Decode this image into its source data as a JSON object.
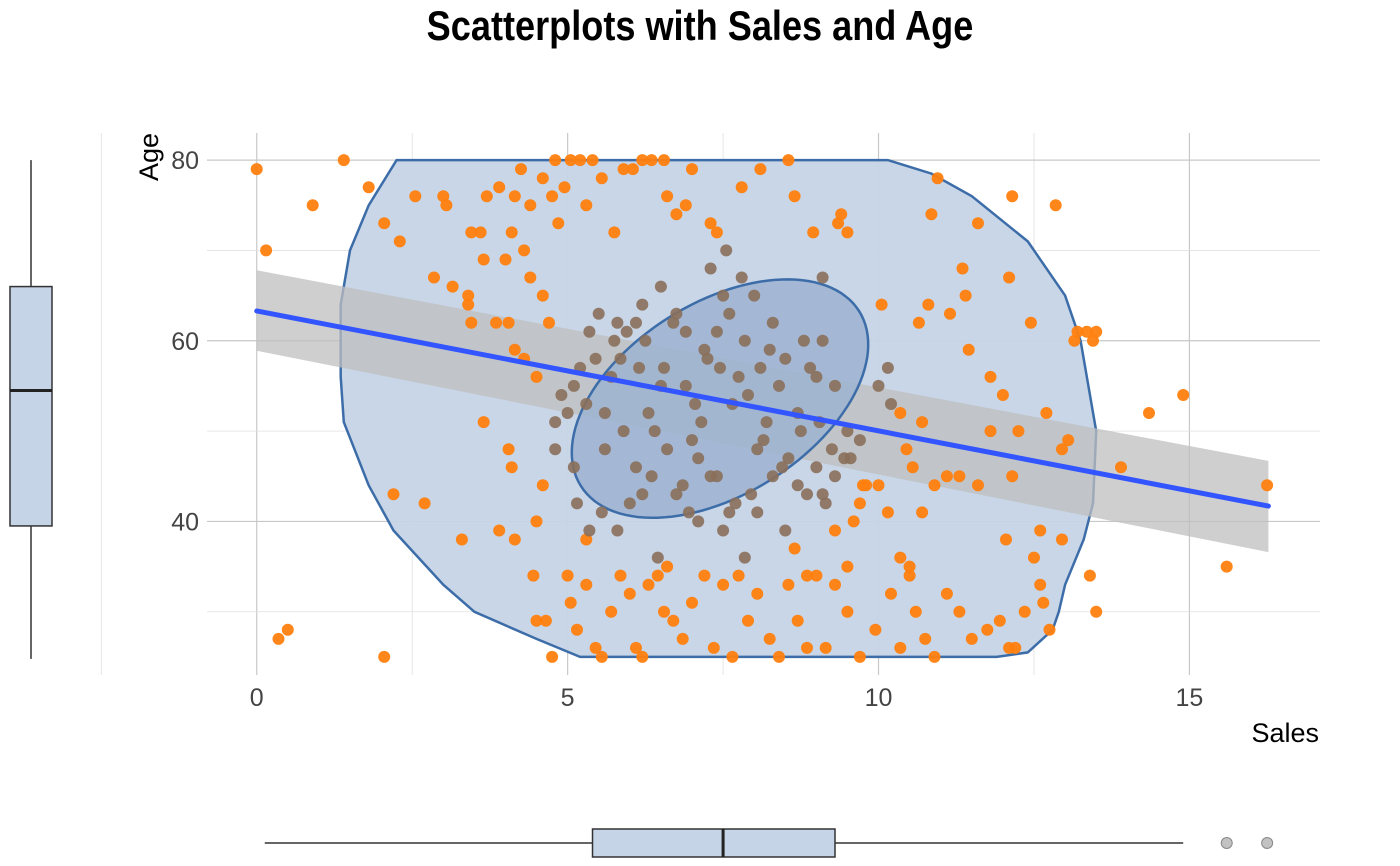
{
  "chart_data": {
    "type": "scatter",
    "title": "Scatterplots with Sales and Age",
    "xlabel": "Sales",
    "ylabel": "Age",
    "xlim": [
      -0.8,
      17.1
    ],
    "ylim": [
      23,
      83
    ],
    "x_ticks": [
      0,
      5,
      10,
      15
    ],
    "y_ticks": [
      40,
      60,
      80
    ],
    "grid": true,
    "colors": {
      "points": "#ff7f0e",
      "inner_points": "#a3814f",
      "ellipse_fill": "#9db3d1",
      "ellipse_stroke": "#3d6da8",
      "hull_fill": "#c5d4e6",
      "regression_line": "#3355ff",
      "confidence_band": "#bfbfbf",
      "boxplot_fill": "#c5d4e6",
      "outlier": "#999999"
    },
    "regression": {
      "x": [
        0,
        16.27
      ],
      "y": [
        63.3,
        41.7
      ],
      "ci_lower": [
        58.9,
        36.6
      ],
      "ci_upper": [
        67.8,
        46.7
      ]
    },
    "hull": [
      [
        2.25,
        80
      ],
      [
        10.15,
        80
      ],
      [
        10.85,
        78.5
      ],
      [
        11.5,
        76
      ],
      [
        12.4,
        71
      ],
      [
        13.0,
        65
      ],
      [
        13.25,
        60
      ],
      [
        13.5,
        50
      ],
      [
        13.45,
        42
      ],
      [
        13.3,
        38
      ],
      [
        13.0,
        33
      ],
      [
        12.9,
        30
      ],
      [
        12.8,
        28
      ],
      [
        12.4,
        25.5
      ],
      [
        11.9,
        25
      ],
      [
        5.2,
        25
      ],
      [
        4.5,
        27
      ],
      [
        3.5,
        30
      ],
      [
        3.0,
        33
      ],
      [
        2.2,
        39
      ],
      [
        1.8,
        44
      ],
      [
        1.4,
        51
      ],
      [
        1.35,
        56
      ],
      [
        1.35,
        64
      ],
      [
        1.5,
        70
      ],
      [
        1.8,
        75
      ],
      [
        2.25,
        80
      ]
    ],
    "ellipse": {
      "center": [
        7.45,
        53.6
      ],
      "rx": 2.95,
      "ry": 18.5,
      "tilt": -0.68
    },
    "points": [
      [
        0,
        79
      ],
      [
        0.15,
        70
      ],
      [
        0.9,
        75
      ],
      [
        1.4,
        80
      ],
      [
        1.8,
        77
      ],
      [
        2.05,
        73
      ],
      [
        2.3,
        71
      ],
      [
        2.55,
        76
      ],
      [
        2.85,
        67
      ],
      [
        3.0,
        76
      ],
      [
        3.05,
        75
      ],
      [
        3.15,
        66
      ],
      [
        3.4,
        64
      ],
      [
        3.45,
        72
      ],
      [
        3.6,
        72
      ],
      [
        3.65,
        69
      ],
      [
        3.7,
        76
      ],
      [
        3.9,
        77
      ],
      [
        4.0,
        69
      ],
      [
        4.1,
        72
      ],
      [
        4.15,
        76
      ],
      [
        4.25,
        79
      ],
      [
        4.3,
        70
      ],
      [
        4.4,
        75
      ],
      [
        4.6,
        78
      ],
      [
        4.75,
        76
      ],
      [
        4.8,
        80
      ],
      [
        4.85,
        73
      ],
      [
        4.95,
        77
      ],
      [
        5.05,
        80
      ],
      [
        5.2,
        80
      ],
      [
        5.3,
        75
      ],
      [
        5.4,
        80
      ],
      [
        5.55,
        78
      ],
      [
        5.75,
        72
      ],
      [
        5.9,
        79
      ],
      [
        6.05,
        79
      ],
      [
        6.2,
        80
      ],
      [
        6.35,
        80
      ],
      [
        6.55,
        80
      ],
      [
        6.6,
        76
      ],
      [
        6.75,
        74
      ],
      [
        6.9,
        75
      ],
      [
        7.0,
        79
      ],
      [
        7.3,
        73
      ],
      [
        7.4,
        72
      ],
      [
        7.55,
        70
      ],
      [
        7.8,
        77
      ],
      [
        8.1,
        79
      ],
      [
        8.55,
        80
      ],
      [
        8.65,
        76
      ],
      [
        8.95,
        72
      ],
      [
        9.1,
        67
      ],
      [
        9.35,
        73
      ],
      [
        9.4,
        74
      ],
      [
        9.5,
        72
      ],
      [
        10.05,
        64
      ],
      [
        10.15,
        57
      ],
      [
        10.65,
        62
      ],
      [
        10.8,
        64
      ],
      [
        10.85,
        74
      ],
      [
        10.95,
        78
      ],
      [
        11.15,
        63
      ],
      [
        11.35,
        68
      ],
      [
        11.4,
        65
      ],
      [
        11.45,
        59
      ],
      [
        11.6,
        73
      ],
      [
        11.8,
        56
      ],
      [
        12.0,
        54
      ],
      [
        12.1,
        67
      ],
      [
        12.15,
        76
      ],
      [
        12.25,
        50
      ],
      [
        12.45,
        62
      ],
      [
        12.7,
        52
      ],
      [
        12.95,
        48
      ],
      [
        12.85,
        75
      ],
      [
        13.05,
        49
      ],
      [
        13.15,
        60
      ],
      [
        13.2,
        61
      ],
      [
        13.35,
        61
      ],
      [
        13.45,
        60
      ],
      [
        13.5,
        61
      ],
      [
        3.4,
        65
      ],
      [
        3.45,
        62
      ],
      [
        3.65,
        51
      ],
      [
        3.85,
        62
      ],
      [
        4.05,
        62
      ],
      [
        4.15,
        59
      ],
      [
        4.3,
        58
      ],
      [
        4.4,
        67
      ],
      [
        4.5,
        56
      ],
      [
        4.6,
        65
      ],
      [
        4.7,
        62
      ],
      [
        4.8,
        51
      ],
      [
        4.9,
        54
      ],
      [
        5.0,
        52
      ],
      [
        5.1,
        55
      ],
      [
        5.2,
        57
      ],
      [
        5.35,
        61
      ],
      [
        5.45,
        58
      ],
      [
        5.6,
        52
      ],
      [
        5.75,
        60
      ],
      [
        5.85,
        58
      ],
      [
        6.1,
        62
      ],
      [
        6.25,
        60
      ],
      [
        6.4,
        50
      ],
      [
        6.55,
        57
      ],
      [
        6.7,
        62
      ],
      [
        6.9,
        55
      ],
      [
        7.05,
        53
      ],
      [
        7.15,
        51
      ],
      [
        7.25,
        58
      ],
      [
        7.4,
        61
      ],
      [
        7.6,
        63
      ],
      [
        7.75,
        56
      ],
      [
        7.9,
        54
      ],
      [
        8.05,
        48
      ],
      [
        8.2,
        51
      ],
      [
        8.4,
        55
      ],
      [
        8.55,
        47
      ],
      [
        8.7,
        44
      ],
      [
        8.85,
        43
      ],
      [
        9.0,
        46
      ],
      [
        9.15,
        42
      ],
      [
        9.3,
        45
      ],
      [
        9.45,
        47
      ],
      [
        9.6,
        40
      ],
      [
        9.8,
        44
      ],
      [
        10.0,
        55
      ],
      [
        10.2,
        53
      ],
      [
        10.35,
        52
      ],
      [
        10.45,
        48
      ],
      [
        10.55,
        46
      ],
      [
        10.7,
        51
      ],
      [
        2.2,
        43
      ],
      [
        2.7,
        42
      ],
      [
        3.3,
        38
      ],
      [
        3.9,
        39
      ],
      [
        4.15,
        38
      ],
      [
        4.05,
        48
      ],
      [
        4.1,
        46
      ],
      [
        4.5,
        40
      ],
      [
        4.6,
        44
      ],
      [
        4.8,
        48
      ],
      [
        5.1,
        46
      ],
      [
        5.15,
        42
      ],
      [
        5.3,
        38
      ],
      [
        5.35,
        39
      ],
      [
        5.55,
        41
      ],
      [
        5.8,
        39
      ],
      [
        6.0,
        42
      ],
      [
        6.2,
        43
      ],
      [
        6.45,
        36
      ],
      [
        6.6,
        35
      ],
      [
        6.75,
        43
      ],
      [
        6.95,
        41
      ],
      [
        7.1,
        40
      ],
      [
        7.3,
        45
      ],
      [
        7.5,
        39
      ],
      [
        7.7,
        42
      ],
      [
        7.85,
        36
      ],
      [
        8.05,
        41
      ],
      [
        8.3,
        45
      ],
      [
        8.5,
        39
      ],
      [
        8.65,
        37
      ],
      [
        8.85,
        34
      ],
      [
        9.1,
        43
      ],
      [
        9.3,
        39
      ],
      [
        9.5,
        35
      ],
      [
        9.7,
        42
      ],
      [
        10.0,
        44
      ],
      [
        10.15,
        41
      ],
      [
        10.35,
        36
      ],
      [
        10.5,
        35
      ],
      [
        10.7,
        41
      ],
      [
        10.9,
        44
      ],
      [
        11.1,
        45
      ],
      [
        11.3,
        45
      ],
      [
        11.6,
        44
      ],
      [
        11.8,
        50
      ],
      [
        12.05,
        38
      ],
      [
        12.15,
        45
      ],
      [
        12.5,
        36
      ],
      [
        12.6,
        39
      ],
      [
        12.95,
        38
      ],
      [
        13.4,
        34
      ],
      [
        13.5,
        30
      ],
      [
        13.9,
        46
      ],
      [
        14.35,
        52
      ],
      [
        14.9,
        54
      ],
      [
        15.6,
        35
      ],
      [
        16.25,
        44
      ],
      [
        0.35,
        27
      ],
      [
        0.5,
        28
      ],
      [
        2.05,
        25
      ],
      [
        4.45,
        34
      ],
      [
        4.5,
        29
      ],
      [
        4.65,
        29
      ],
      [
        4.75,
        25
      ],
      [
        5.0,
        34
      ],
      [
        5.05,
        31
      ],
      [
        5.15,
        28
      ],
      [
        5.3,
        33
      ],
      [
        5.45,
        26
      ],
      [
        5.55,
        25
      ],
      [
        5.7,
        30
      ],
      [
        5.85,
        34
      ],
      [
        6.0,
        32
      ],
      [
        6.1,
        26
      ],
      [
        6.2,
        25
      ],
      [
        6.3,
        33
      ],
      [
        6.45,
        34
      ],
      [
        6.55,
        30
      ],
      [
        6.7,
        29
      ],
      [
        6.85,
        27
      ],
      [
        7.0,
        31
      ],
      [
        7.2,
        34
      ],
      [
        7.35,
        26
      ],
      [
        7.5,
        33
      ],
      [
        7.65,
        25
      ],
      [
        7.75,
        34
      ],
      [
        7.9,
        29
      ],
      [
        8.05,
        32
      ],
      [
        8.25,
        27
      ],
      [
        8.4,
        25
      ],
      [
        8.55,
        33
      ],
      [
        8.7,
        29
      ],
      [
        8.85,
        26
      ],
      [
        9.0,
        34
      ],
      [
        9.15,
        26
      ],
      [
        9.3,
        33
      ],
      [
        9.5,
        30
      ],
      [
        9.7,
        25
      ],
      [
        9.95,
        28
      ],
      [
        10.2,
        32
      ],
      [
        10.35,
        26
      ],
      [
        10.5,
        34
      ],
      [
        10.6,
        30
      ],
      [
        10.75,
        27
      ],
      [
        10.9,
        25
      ],
      [
        11.1,
        32
      ],
      [
        11.3,
        30
      ],
      [
        11.5,
        27
      ],
      [
        11.75,
        28
      ],
      [
        11.95,
        29
      ],
      [
        12.1,
        26
      ],
      [
        12.2,
        26
      ],
      [
        12.35,
        30
      ],
      [
        12.6,
        33
      ],
      [
        12.65,
        31
      ],
      [
        12.75,
        28
      ],
      [
        5.5,
        63
      ],
      [
        5.7,
        56
      ],
      [
        5.95,
        61
      ],
      [
        6.15,
        57
      ],
      [
        6.3,
        52
      ],
      [
        6.5,
        55
      ],
      [
        6.75,
        63
      ],
      [
        7.0,
        49
      ],
      [
        7.2,
        59
      ],
      [
        7.45,
        57
      ],
      [
        7.65,
        53
      ],
      [
        7.85,
        60
      ],
      [
        8.1,
        57
      ],
      [
        8.3,
        62
      ],
      [
        8.5,
        58
      ],
      [
        8.7,
        52
      ],
      [
        8.9,
        57
      ],
      [
        9.1,
        60
      ],
      [
        9.3,
        55
      ],
      [
        9.5,
        50
      ],
      [
        9.7,
        49
      ],
      [
        5.3,
        53
      ],
      [
        5.6,
        48
      ],
      [
        5.9,
        50
      ],
      [
        6.1,
        46
      ],
      [
        6.35,
        45
      ],
      [
        6.6,
        48
      ],
      [
        6.85,
        44
      ],
      [
        7.1,
        47
      ],
      [
        7.4,
        45
      ],
      [
        7.6,
        41
      ],
      [
        7.95,
        43
      ],
      [
        8.15,
        49
      ],
      [
        8.45,
        46
      ],
      [
        8.75,
        50
      ],
      [
        9.05,
        51
      ],
      [
        9.25,
        48
      ],
      [
        9.55,
        47
      ],
      [
        9.75,
        44
      ],
      [
        7.5,
        65
      ],
      [
        7.8,
        67
      ],
      [
        8.0,
        65
      ],
      [
        7.3,
        68
      ],
      [
        6.9,
        61
      ],
      [
        8.25,
        59
      ],
      [
        8.8,
        60
      ],
      [
        6.2,
        64
      ],
      [
        6.5,
        66
      ],
      [
        5.8,
        62
      ],
      [
        9.0,
        56
      ]
    ],
    "x_boxplot": {
      "min": 0.0,
      "q1": 5.4,
      "median": 7.5,
      "q3": 9.3,
      "max": 14.9,
      "outliers": [
        15.6,
        16.25
      ]
    },
    "y_boxplot": {
      "min": 25,
      "q1": 39.5,
      "median": 54.5,
      "q3": 66,
      "max": 80
    }
  }
}
